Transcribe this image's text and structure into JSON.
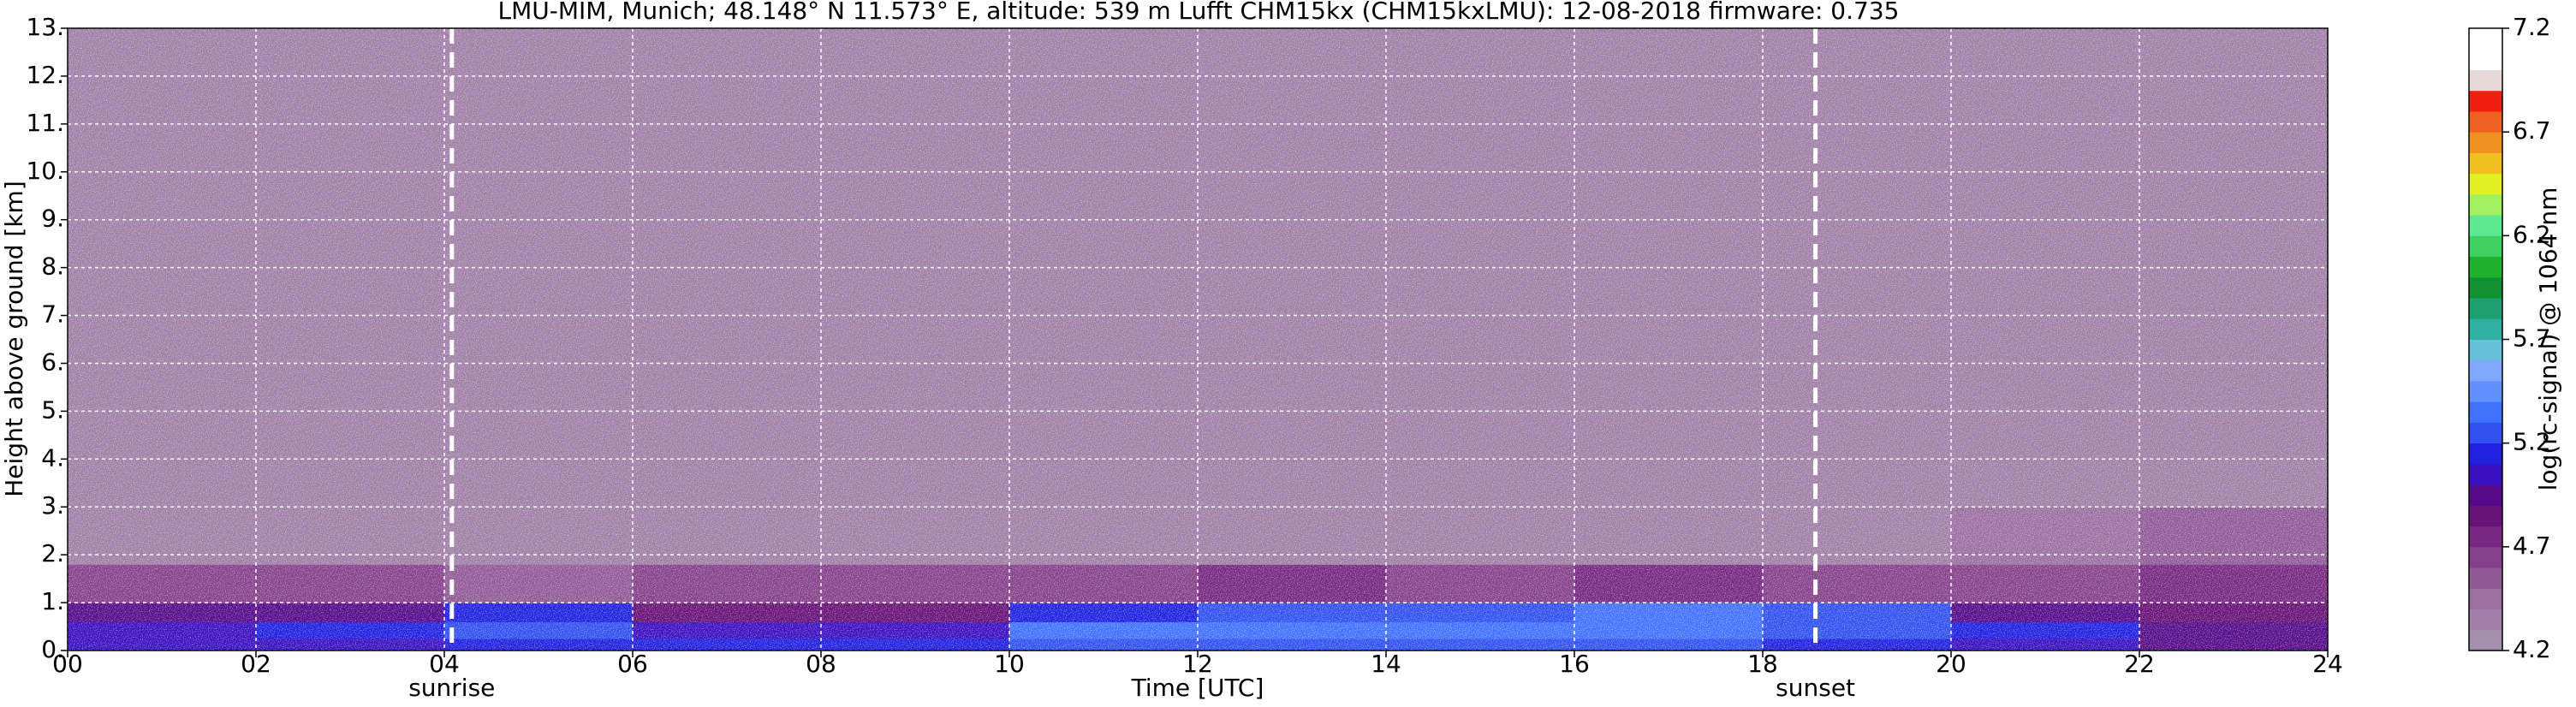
{
  "chart_data": {
    "type": "heatmap",
    "title": "LMU-MIM, Munich; 48.148° N 11.573° E, altitude: 539 m    Lufft CHM15kx (CHM15kxLMU): 12-08-2018    firmware: 0.735",
    "x_label": "Time [UTC]",
    "y_label": "Height above ground [km]",
    "colorbar_label": "log(rc-signal) @ 1064 nm",
    "x_edges": [
      0,
      2,
      4,
      6,
      8,
      10,
      12,
      14,
      16,
      18,
      20,
      22,
      24
    ],
    "y_edges": [
      0,
      0.25,
      0.6,
      1.0,
      1.8,
      3,
      13
    ],
    "z": [
      [
        5.0,
        5.0,
        5.1,
        5.1,
        5.1,
        5.2,
        5.2,
        5.2,
        5.2,
        5.1,
        5.0,
        4.9
      ],
      [
        5.0,
        5.1,
        5.2,
        5.0,
        5.0,
        5.3,
        5.3,
        5.3,
        5.3,
        5.2,
        5.1,
        4.9
      ],
      [
        4.9,
        4.9,
        5.1,
        4.8,
        4.8,
        5.1,
        5.2,
        5.2,
        5.3,
        5.2,
        4.9,
        4.8
      ],
      [
        4.6,
        4.6,
        4.5,
        4.6,
        4.6,
        4.6,
        4.7,
        4.6,
        4.7,
        4.6,
        4.6,
        4.7
      ],
      [
        4.3,
        4.3,
        4.3,
        4.3,
        4.3,
        4.3,
        4.3,
        4.3,
        4.3,
        4.3,
        4.4,
        4.5
      ],
      [
        4.3,
        4.3,
        4.3,
        4.3,
        4.3,
        4.3,
        4.3,
        4.3,
        4.3,
        4.3,
        4.3,
        4.3
      ]
    ],
    "xlim": [
      0,
      24
    ],
    "ylim": [
      0,
      13
    ],
    "zlim": [
      4.2,
      7.2
    ],
    "colors": [
      "#a58fae",
      "#a07ea8",
      "#9a6fa0",
      "#8f5a96",
      "#85408b",
      "#762780",
      "#661276",
      "#560a8a",
      "#3a10c0",
      "#2020e0",
      "#3050f0",
      "#4070ff",
      "#6090ff",
      "#80a8ff",
      "#66c0d8",
      "#30b0a0",
      "#20a070",
      "#109030",
      "#20b030",
      "#40d060",
      "#60e890",
      "#a0f060",
      "#e0f020",
      "#f0c020",
      "#f09020",
      "#f06020",
      "#f02010",
      "#e8d8d8",
      "#ffffff",
      "#ffffff"
    ],
    "xticks": [
      {
        "value": 0,
        "label": "00"
      },
      {
        "value": 2,
        "label": "02"
      },
      {
        "value": 4,
        "label": "04"
      },
      {
        "value": 6,
        "label": "06"
      },
      {
        "value": 8,
        "label": "08"
      },
      {
        "value": 10,
        "label": "10"
      },
      {
        "value": 12,
        "label": "12"
      },
      {
        "value": 14,
        "label": "14"
      },
      {
        "value": 16,
        "label": "16"
      },
      {
        "value": 18,
        "label": "18"
      },
      {
        "value": 20,
        "label": "20"
      },
      {
        "value": 22,
        "label": "22"
      },
      {
        "value": 24,
        "label": "24"
      }
    ],
    "yticks": [
      {
        "value": 0,
        "label": "0."
      },
      {
        "value": 1,
        "label": "1."
      },
      {
        "value": 2,
        "label": "2."
      },
      {
        "value": 3,
        "label": "3."
      },
      {
        "value": 4,
        "label": "4."
      },
      {
        "value": 5,
        "label": "5."
      },
      {
        "value": 6,
        "label": "6."
      },
      {
        "value": 7,
        "label": "7."
      },
      {
        "value": 8,
        "label": "8."
      },
      {
        "value": 9,
        "label": "9."
      },
      {
        "value": 10,
        "label": "10."
      },
      {
        "value": 11,
        "label": "11."
      },
      {
        "value": 12,
        "label": "12."
      },
      {
        "value": 13,
        "label": "13."
      }
    ],
    "zticks": [
      4.2,
      4.7,
      5.2,
      5.7,
      6.2,
      6.7,
      7.2
    ],
    "grid": true,
    "annotations": [
      {
        "text": "sunrise",
        "x": 4.08
      },
      {
        "text": "sunset",
        "x": 18.56
      }
    ]
  }
}
